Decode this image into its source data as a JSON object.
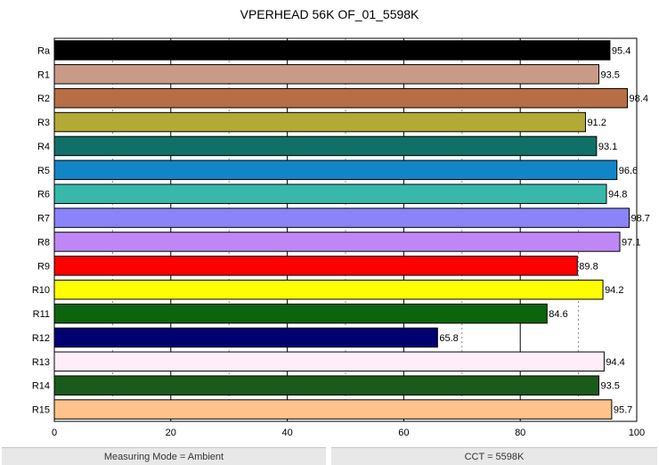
{
  "chart_data": {
    "type": "bar",
    "orientation": "horizontal",
    "title": "VPERHEAD 56K OF_01_5598K",
    "xlabel": "",
    "ylabel": "",
    "xlim": [
      0,
      100
    ],
    "xticks": [
      0,
      20,
      40,
      60,
      80,
      100
    ],
    "grid": true,
    "categories": [
      "Ra",
      "R1",
      "R2",
      "R3",
      "R4",
      "R5",
      "R6",
      "R7",
      "R8",
      "R9",
      "R10",
      "R11",
      "R12",
      "R13",
      "R14",
      "R15"
    ],
    "values": [
      95.4,
      93.5,
      98.4,
      91.2,
      93.1,
      96.6,
      94.8,
      98.7,
      97.1,
      89.8,
      94.2,
      84.6,
      65.8,
      94.4,
      93.5,
      95.7
    ],
    "value_labels": [
      "95.4",
      "93.5",
      "98.4",
      "91.2",
      "93.1",
      "96.6",
      "94.8",
      "98.7",
      "97.1",
      "89.8",
      "94.2",
      "84.6",
      "65.8",
      "94.4",
      "93.5",
      "95.7"
    ],
    "colors": [
      "#000000",
      "#c99a87",
      "#b86e45",
      "#b3aa35",
      "#107068",
      "#1186c6",
      "#37b8aa",
      "#8b83f8",
      "#bf87f5",
      "#ff0000",
      "#ffff00",
      "#0c640c",
      "#000070",
      "#ffeefa",
      "#1a5a1a",
      "#ffc28b"
    ]
  },
  "footer": {
    "left": "Measuring Mode = Ambient",
    "right": "CCT = 5598K"
  }
}
